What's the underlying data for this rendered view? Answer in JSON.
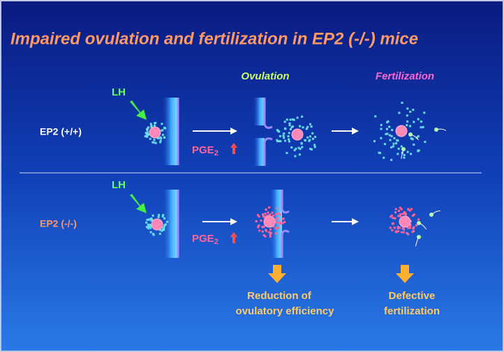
{
  "title": "Impaired ovulation and fertilization in EP2 (-/-) mice",
  "columns": [
    "Ovulation",
    "Fertilization"
  ],
  "rows": [
    {
      "label": "EP2 (+/+)",
      "stimulus": "LH",
      "mediator": {
        "base": "PGE",
        "subscript": "2"
      }
    },
    {
      "label": "EP2 (-/-)",
      "stimulus": "LH",
      "mediator": {
        "base": "PGE",
        "subscript": "2"
      }
    }
  ],
  "outcomes": [
    {
      "lines": [
        "Reduction of",
        "ovulatory efficiency"
      ]
    },
    {
      "lines": [
        "Defective",
        "fertilization"
      ]
    }
  ]
}
